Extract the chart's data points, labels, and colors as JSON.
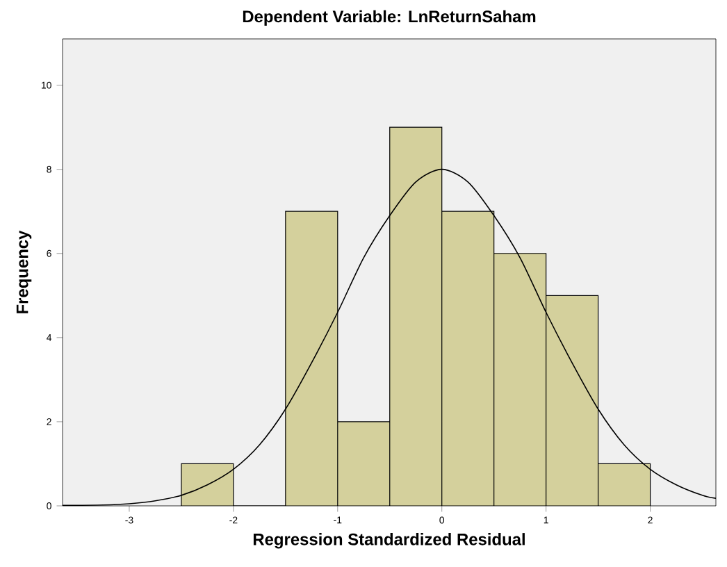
{
  "chart_data": {
    "type": "histogram",
    "title": "Dependent Variable: LnReturnSaham",
    "xlabel": "Regression Standardized Residual",
    "ylabel": "Frequency",
    "xlim": [
      -3.64,
      2.63
    ],
    "ylim": [
      0,
      11.1
    ],
    "xticks": [
      -3,
      -2,
      -1,
      0,
      1,
      2
    ],
    "yticks": [
      0,
      2,
      4,
      6,
      8,
      10
    ],
    "grid": false,
    "series": [
      {
        "color": "#d4d09c",
        "bins": [
          -2.5,
          -2,
          -1.5,
          -1,
          -0.5,
          0,
          0.5,
          1,
          1.5,
          2
        ],
        "values": [
          1,
          0,
          7,
          2,
          9,
          7,
          6,
          5,
          1
        ]
      },
      {
        "type": "line",
        "color": "#000000",
        "x": [
          -3.64,
          -3.25,
          -3,
          -2.75,
          -2.5,
          -2.25,
          -2,
          -1.75,
          -1.5,
          -1.25,
          -1,
          -0.75,
          -0.5,
          -0.25,
          0,
          0.25,
          0.5,
          0.75,
          1,
          1.25,
          1.5,
          1.75,
          2,
          2.25,
          2.5,
          2.63
        ],
        "values": [
          0.01,
          0.02,
          0.05,
          0.12,
          0.25,
          0.5,
          0.87,
          1.45,
          2.3,
          3.4,
          4.6,
          5.9,
          6.9,
          7.7,
          8,
          7.7,
          6.9,
          5.9,
          4.6,
          3.4,
          2.3,
          1.45,
          0.87,
          0.5,
          0.25,
          0.18
        ]
      }
    ]
  }
}
